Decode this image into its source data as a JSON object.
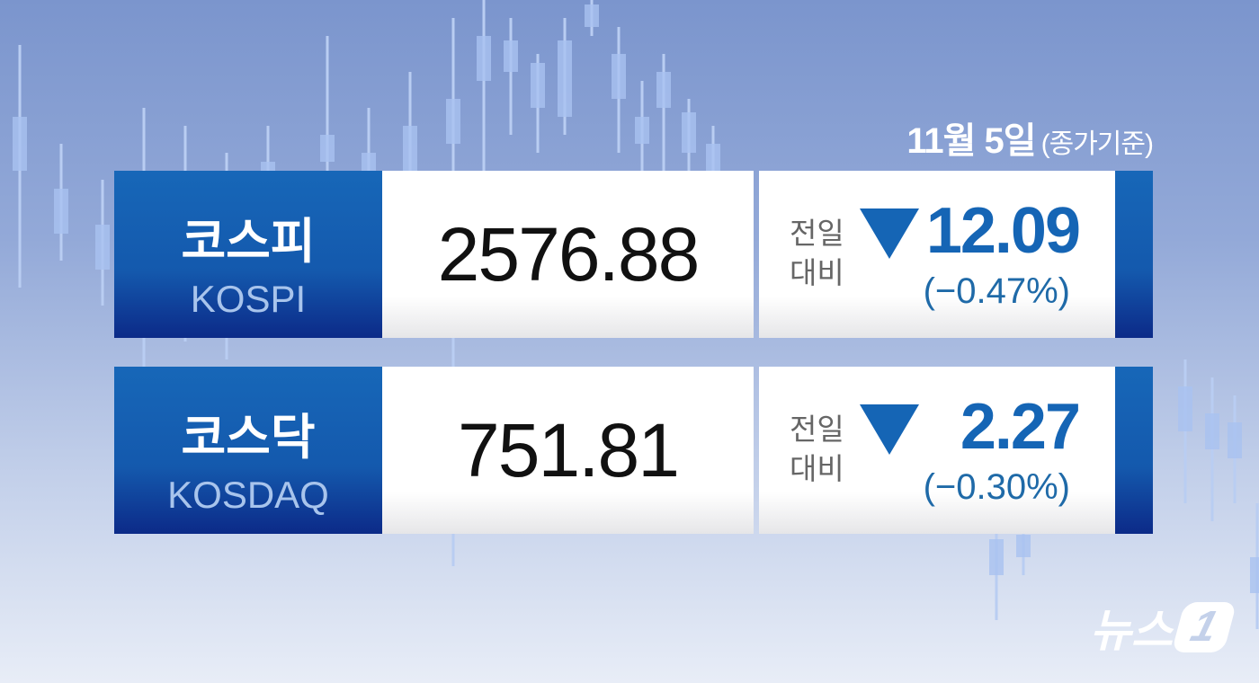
{
  "date": {
    "day": "11월 5일",
    "basis": "(종가기준)"
  },
  "indices": [
    {
      "name_ko": "코스피",
      "name_en": "KOSPI",
      "value": "2576.88",
      "compare_label": "전일 대비",
      "direction": "down",
      "change": "12.09",
      "change_pct": "(−0.47%)"
    },
    {
      "name_ko": "코스닥",
      "name_en": "KOSDAQ",
      "value": "751.81",
      "compare_label": "전일 대비",
      "direction": "down",
      "change": "2.27",
      "change_pct": "(−0.30%)"
    }
  ],
  "logo": {
    "text": "뉴스1"
  },
  "colors": {
    "accent_blue": "#1565b5",
    "down": "#1565b5"
  },
  "icons": {
    "direction": "triangle-down-icon"
  }
}
